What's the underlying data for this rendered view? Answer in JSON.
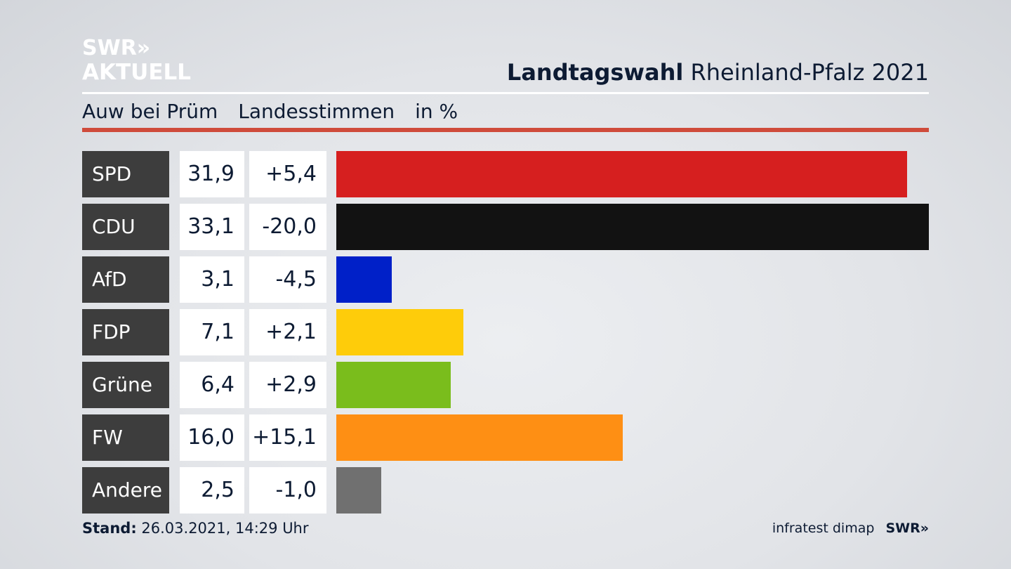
{
  "logo": {
    "line1": "SWR»",
    "line2": "AKTUELL"
  },
  "header": {
    "title_bold": "Landtagswahl",
    "title_rest": "Rheinland-Pfalz 2021"
  },
  "subtitle": {
    "place": "Auw bei Prüm",
    "vote_type": "Landesstimmen",
    "unit": "in %"
  },
  "chart_data": {
    "type": "bar",
    "orientation": "horizontal",
    "categories": [
      "SPD",
      "CDU",
      "AfD",
      "FDP",
      "Grüne",
      "FW",
      "Andere"
    ],
    "values": [
      31.9,
      33.1,
      3.1,
      7.1,
      6.4,
      16.0,
      2.5
    ],
    "value_labels": [
      "31,9",
      "33,1",
      "3,1",
      "7,1",
      "6,4",
      "16,0",
      "2,5"
    ],
    "changes": [
      5.4,
      -20.0,
      -4.5,
      2.1,
      2.9,
      15.1,
      -1.0
    ],
    "change_labels": [
      "+5,4",
      "-20,0",
      "-4,5",
      "+2,1",
      "+2,9",
      "+15,1",
      "-1,0"
    ],
    "colors": [
      "#d61f1f",
      "#121212",
      "#0020c8",
      "#fecc0a",
      "#7abd1c",
      "#fe8f14",
      "#707070"
    ],
    "grid": false,
    "legend": "none"
  },
  "footer": {
    "stand_label": "Stand:",
    "stand_value": "26.03.2021, 14:29 Uhr",
    "source": "infratest dimap",
    "source_logo": "SWR»"
  }
}
